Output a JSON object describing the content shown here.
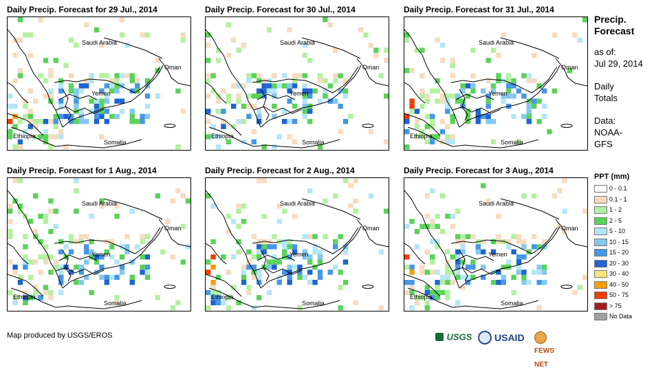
{
  "panels": [
    {
      "title": "Daily Precip. Forecast for 29 Jul., 2014",
      "pattern": 1
    },
    {
      "title": "Daily Precip. Forecast for 30 Jul., 2014",
      "pattern": 2
    },
    {
      "title": "Daily Precip. Forecast for 31 Jul., 2014",
      "pattern": 3
    },
    {
      "title": "Daily Precip. Forecast for 1 Aug., 2014",
      "pattern": 4
    },
    {
      "title": "Daily Precip. Forecast for 2 Aug., 2014",
      "pattern": 5
    },
    {
      "title": "Daily Precip. Forecast for 3 Aug., 2014",
      "pattern": 6
    }
  ],
  "map_labels": {
    "saudi_arabia": "Saudi Arabia",
    "oman": "Oman",
    "yemen": "Yemen",
    "ethiopia": "Ethiopia",
    "somalia": "Somalia"
  },
  "side": {
    "title_line1": "Precip.",
    "title_line2": "Forecast",
    "asof_line1": "as of:",
    "asof_line2": "Jul 29, 2014",
    "totals_line1": "Daily",
    "totals_line2": "Totals",
    "data_line1": "Data:",
    "data_line2": "NOAA-",
    "data_line3": "GFS"
  },
  "legend": {
    "title": "PPT (mm)",
    "items": [
      {
        "label": "0 - 0.1",
        "color": "#ffffff"
      },
      {
        "label": "0.1 - 1",
        "color": "#f5dcc0"
      },
      {
        "label": "1 - 2",
        "color": "#b4f0a0"
      },
      {
        "label": "2 - 5",
        "color": "#5ad25a"
      },
      {
        "label": "5 - 10",
        "color": "#b4e6f5"
      },
      {
        "label": "10 - 15",
        "color": "#82c8f0"
      },
      {
        "label": "15 - 20",
        "color": "#4696e6"
      },
      {
        "label": "20 - 30",
        "color": "#1e64d2"
      },
      {
        "label": "30 - 40",
        "color": "#fae678"
      },
      {
        "label": "40 - 50",
        "color": "#f5a000"
      },
      {
        "label": "50 - 75",
        "color": "#f03c00"
      },
      {
        "label": "> 75",
        "color": "#a02020"
      },
      {
        "label": "No Data",
        "color": "#a0a0a0"
      }
    ]
  },
  "credit": "Map produced by USGS/EROS",
  "logos": {
    "usgs": "USGS",
    "usaid": "USAID",
    "fews": "FEWS NET"
  }
}
